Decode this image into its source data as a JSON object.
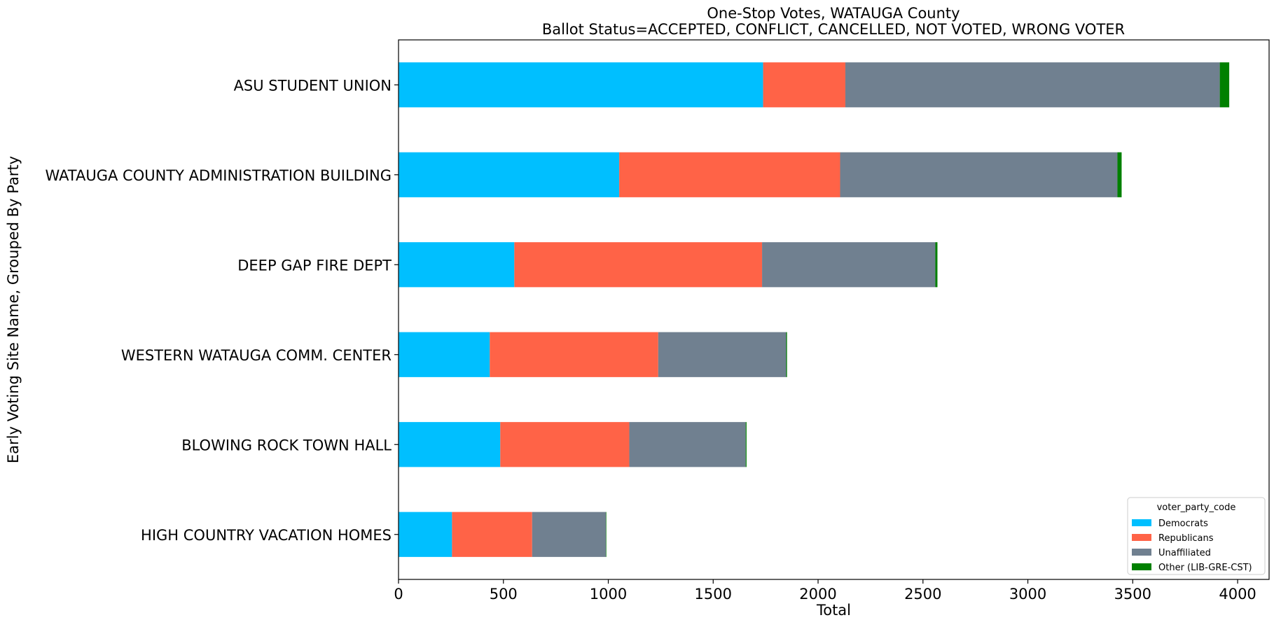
{
  "chart_data": {
    "type": "bar",
    "orientation": "horizontal",
    "stacked": true,
    "title": "One-Stop Votes, WATAUGA County",
    "subtitle": "Ballot Status=ACCEPTED, CONFLICT, CANCELLED, NOT VOTED, WRONG VOTER",
    "xlabel": "Total",
    "ylabel": "Early Voting Site Name, Grouped By Party",
    "xlim": [
      0,
      4150
    ],
    "xticks": [
      0,
      500,
      1000,
      1500,
      2000,
      2500,
      3000,
      3500,
      4000
    ],
    "grid": false,
    "categories": [
      "ASU STUDENT UNION",
      "WATAUGA COUNTY ADMINISTRATION BUILDING",
      "DEEP GAP FIRE DEPT",
      "WESTERN WATAUGA COMM. CENTER",
      "BLOWING ROCK TOWN HALL",
      "HIGH COUNTRY VACATION HOMES"
    ],
    "legend": {
      "title": "voter_party_code",
      "position": "lower-right"
    },
    "series": [
      {
        "name": "Democrats",
        "color": "#00BFFF",
        "values": [
          1738,
          1052,
          552,
          435,
          485,
          255
        ]
      },
      {
        "name": "Republicans",
        "color": "#FF6347",
        "values": [
          392,
          1053,
          1181,
          803,
          615,
          382
        ]
      },
      {
        "name": "Unaffiliated",
        "color": "#708090",
        "values": [
          1785,
          1322,
          826,
          610,
          555,
          352
        ]
      },
      {
        "name": "Other (LIB-GRE-CST)",
        "color": "#008000",
        "values": [
          45,
          20,
          10,
          4,
          4,
          2
        ]
      }
    ]
  }
}
